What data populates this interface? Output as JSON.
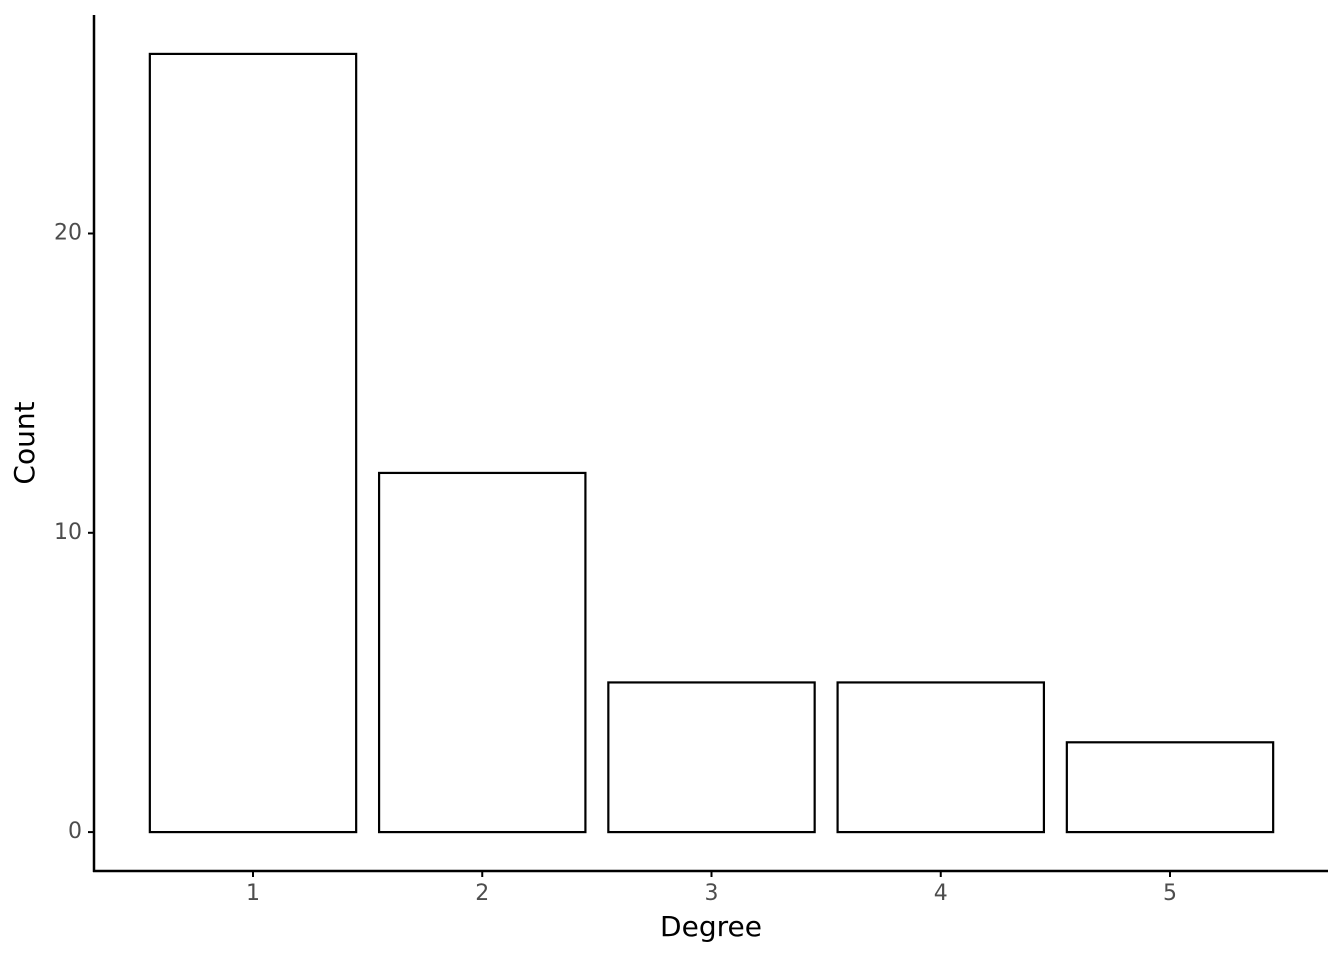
{
  "chart_data": {
    "type": "bar",
    "x_label": "Degree",
    "y_label": "Count",
    "categories": [
      "1",
      "2",
      "3",
      "4",
      "5"
    ],
    "values": [
      26,
      12,
      5,
      5,
      3
    ],
    "color": "#ffffff",
    "edge_color": "#000000",
    "ylim": [
      -1.3,
      27.3
    ],
    "yticks": [
      0,
      10,
      20
    ],
    "grid": false
  }
}
